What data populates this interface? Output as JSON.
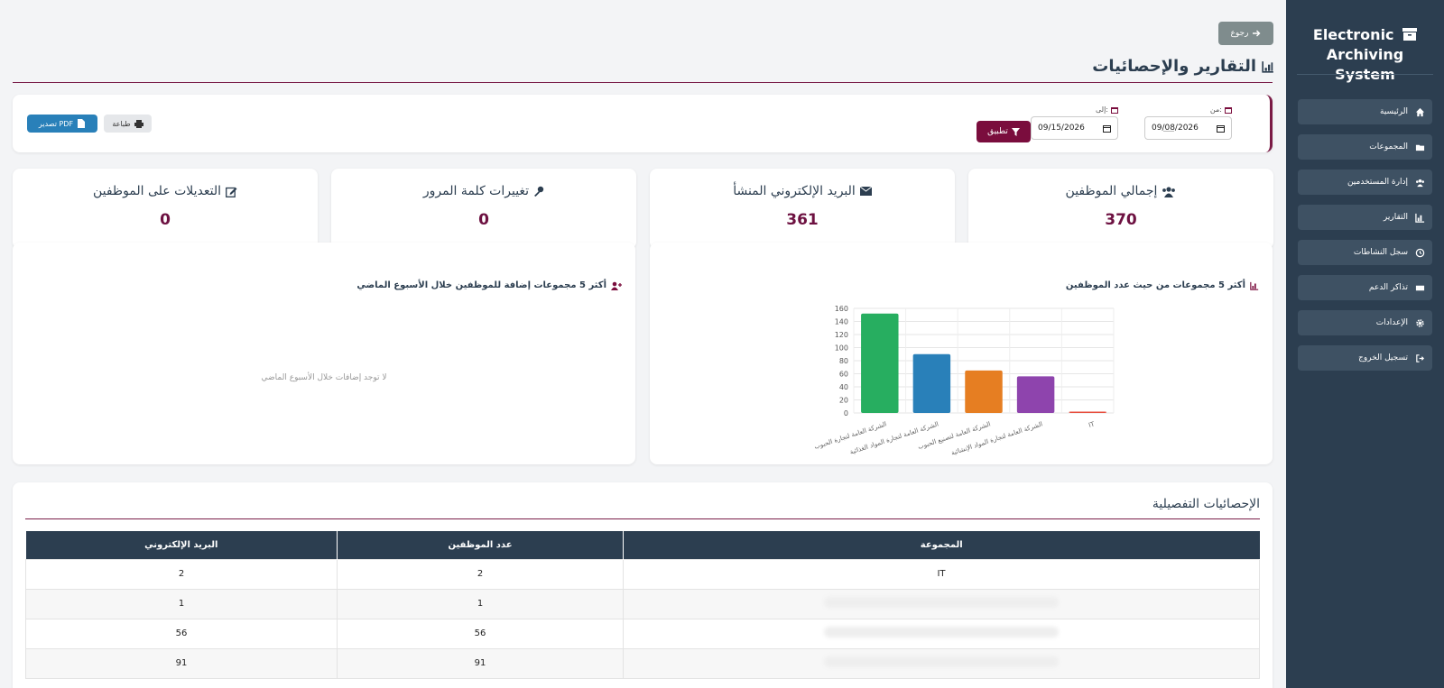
{
  "sidebar": {
    "brand_line1": "Electronic",
    "brand_line2": "Archiving System",
    "items": [
      {
        "label": "الرئيسية",
        "icon": "home-icon"
      },
      {
        "label": "المجموعات",
        "icon": "folder-icon"
      },
      {
        "label": "إدارة المستخدمين",
        "icon": "users-icon"
      },
      {
        "label": "التقارير",
        "icon": "chart-icon"
      },
      {
        "label": "سجل النشاطات",
        "icon": "history-icon"
      },
      {
        "label": "تذاكر الدعم",
        "icon": "ticket-icon"
      },
      {
        "label": "الإعدادات",
        "icon": "gear-icon"
      },
      {
        "label": "تسجيل الخروج",
        "icon": "logout-icon"
      }
    ]
  },
  "header": {
    "back_label": "رجوع",
    "title": "التقارير والإحصائيات"
  },
  "filter": {
    "from_label": "من:",
    "from_value": "09/08/2026",
    "to_label": "إلى:",
    "to_value": "09/15/2026",
    "apply_label": "تطبيق",
    "print_label": "طباعة",
    "pdf_label": "تصدير PDF"
  },
  "stats": [
    {
      "title": "إجمالي الموظفين",
      "value": "370",
      "icon": "users-icon"
    },
    {
      "title": "البريد الإلكتروني المنشأ",
      "value": "361",
      "icon": "envelope-icon"
    },
    {
      "title": "تغييرات كلمة المرور",
      "value": "0",
      "icon": "key-icon"
    },
    {
      "title": "التعديلات على الموظفين",
      "value": "0",
      "icon": "edit-icon"
    }
  ],
  "panels": {
    "top_groups_title": "أكثر 5 مجموعات من حيث عدد الموظفين",
    "recent_title": "أكثر 5 مجموعات إضافة للموظفين خلال الأسبوع الماضي",
    "recent_empty": "لا توجد إضافات خلال الأسبوع الماضي"
  },
  "chart_data": {
    "type": "bar",
    "categories": [
      "الشركة العامة لتجارة الحبوب",
      "الشركة العامة لتجارة المواد الغذائية",
      "الشركة العامة لتصنيع الحبوب",
      "الشركة العامة لتجارة المواد الإنشائية",
      "IT"
    ],
    "values": [
      152,
      90,
      65,
      56,
      2
    ],
    "colors": [
      "#27ae60",
      "#2980b9",
      "#e67e22",
      "#8e44ad",
      "#e74c3c"
    ],
    "yticks": [
      "0",
      "20",
      "40",
      "60",
      "80",
      "100",
      "120",
      "140",
      "160"
    ],
    "ylim": [
      0,
      160
    ],
    "grid": true
  },
  "detail": {
    "title": "الإحصائيات التفصيلية",
    "headers": [
      "المجموعة",
      "عدد الموظفين",
      "البريد الإلكتروني"
    ],
    "rows": [
      {
        "group": "IT",
        "employees": "2",
        "emails": "2"
      },
      {
        "group": "",
        "employees": "1",
        "emails": "1"
      },
      {
        "group": "",
        "employees": "56",
        "emails": "56"
      },
      {
        "group": "",
        "employees": "91",
        "emails": "91"
      }
    ]
  }
}
